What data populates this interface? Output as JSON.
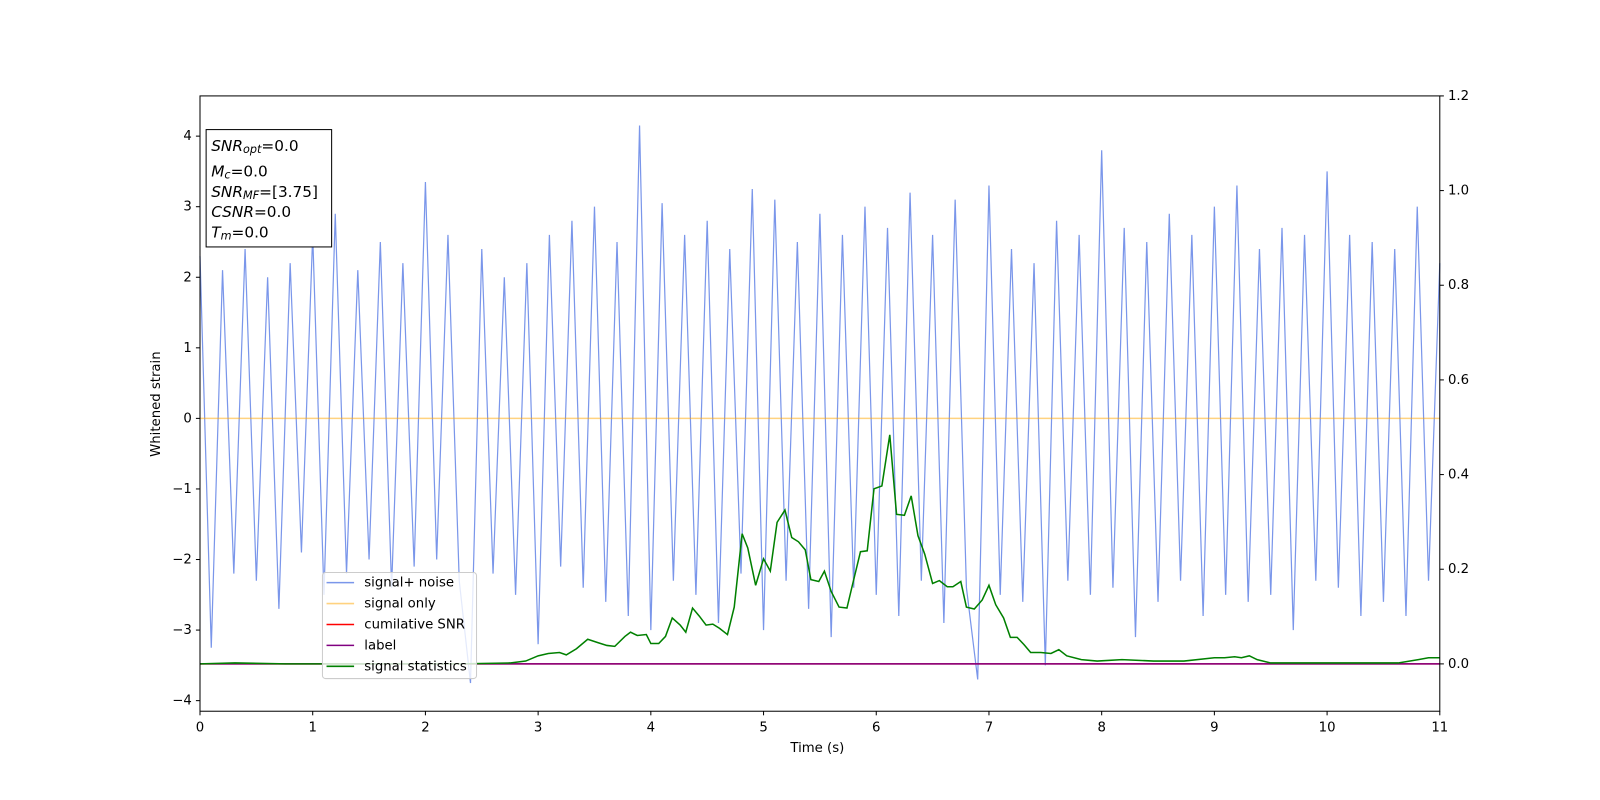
{
  "chart_data": {
    "type": "line",
    "xlabel": "Time (s)",
    "ylabel": "Whitened strain",
    "xlim": [
      0,
      11
    ],
    "ylim": [
      -4.15,
      4.57
    ],
    "y2lim": [
      -0.1,
      1.2
    ],
    "xticks": [
      0,
      1,
      2,
      3,
      4,
      5,
      6,
      7,
      8,
      9,
      10,
      11
    ],
    "yticks": [
      {
        "value": -4,
        "label": "−4"
      },
      {
        "value": -3,
        "label": "−3"
      },
      {
        "value": -2,
        "label": "−2"
      },
      {
        "value": -1,
        "label": "−1"
      },
      0,
      1,
      2,
      3,
      4
    ],
    "y2ticks": [
      {
        "value": 0,
        "label": "0.0"
      },
      0.2,
      0.4,
      0.6,
      0.8,
      {
        "value": 1,
        "label": "1.0"
      },
      1.2
    ],
    "annotations": [
      [
        "SNR",
        "opt",
        "=0.0"
      ],
      [
        "M",
        "c",
        "=0.0"
      ],
      [
        "SNR",
        "MF",
        "=[3.75]"
      ],
      [
        "CSNR",
        "=0.0"
      ],
      [
        "T",
        "m",
        "=0.0"
      ]
    ],
    "series": [
      {
        "name": "signal+ noise",
        "color": "#4169e1",
        "alpha": 0.7,
        "x": [
          0,
          0.1,
          0.2,
          0.3,
          0.4,
          0.5,
          0.6,
          0.7,
          0.8,
          0.9,
          1,
          1.1,
          1.2,
          1.3,
          1.4,
          1.5,
          1.6,
          1.7,
          1.8,
          1.9,
          2,
          2.1,
          2.2,
          2.3,
          2.4,
          2.5,
          2.6,
          2.7,
          2.8,
          2.9,
          3,
          3.1,
          3.2,
          3.3,
          3.4,
          3.5,
          3.6,
          3.7,
          3.8,
          3.9,
          4,
          4.1,
          4.2,
          4.3,
          4.4,
          4.5,
          4.6,
          4.7,
          4.8,
          4.9,
          5,
          5.1,
          5.2,
          5.3,
          5.4,
          5.5,
          5.6,
          5.7,
          5.8,
          5.9,
          6,
          6.1,
          6.2,
          6.3,
          6.4,
          6.5,
          6.6,
          6.7,
          6.8,
          6.9,
          7,
          7.1,
          7.2,
          7.3,
          7.4,
          7.5,
          7.6,
          7.7,
          7.8,
          7.9,
          8,
          8.1,
          8.2,
          8.3,
          8.4,
          8.5,
          8.6,
          8.7,
          8.8,
          8.9,
          9,
          9.1,
          9.2,
          9.3,
          9.4,
          9.5,
          9.6,
          9.7,
          9.8,
          9.9,
          10,
          10.1,
          10.2,
          10.3,
          10.4,
          10.5,
          10.6,
          10.7,
          10.8,
          10.9,
          11
        ],
        "values": [
          2.3,
          -3.25,
          2.1,
          -2.2,
          2.4,
          -2.3,
          2.0,
          -2.7,
          2.2,
          -1.9,
          2.6,
          -2.5,
          2.9,
          -2.2,
          2.1,
          -2.0,
          2.5,
          -2.4,
          2.2,
          -2.1,
          3.35,
          -2.0,
          2.6,
          -2.3,
          -3.75,
          2.4,
          -2.2,
          2.0,
          -2.5,
          2.2,
          -3.2,
          2.6,
          -2.1,
          2.8,
          -2.4,
          3.0,
          -2.6,
          2.5,
          -2.8,
          4.15,
          -3.0,
          3.05,
          -2.3,
          2.6,
          -2.5,
          2.8,
          -2.9,
          2.4,
          -2.2,
          3.25,
          -3.0,
          3.1,
          -2.3,
          2.5,
          -2.7,
          2.9,
          -3.1,
          2.6,
          -2.4,
          3.0,
          -2.5,
          2.7,
          -2.8,
          3.2,
          -2.3,
          2.6,
          -2.9,
          3.1,
          -2.4,
          -3.7,
          3.3,
          -2.5,
          2.4,
          -2.6,
          2.2,
          -3.5,
          2.8,
          -2.3,
          2.6,
          -2.5,
          3.8,
          -2.4,
          2.7,
          -3.1,
          2.5,
          -2.6,
          2.9,
          -2.3,
          2.6,
          -2.8,
          3.0,
          -2.5,
          3.3,
          -2.6,
          2.4,
          -2.5,
          2.7,
          -3.0,
          2.6,
          -2.3,
          3.5,
          -2.4,
          2.6,
          -2.8,
          2.5,
          -2.6,
          2.4,
          -2.8,
          3.0,
          -2.3,
          2.2
        ]
      },
      {
        "name": "signal only",
        "color": "#ffa500",
        "alpha": 0.5,
        "x": [
          0,
          11
        ],
        "values": [
          0,
          0
        ]
      },
      {
        "name": "cumilative SNR",
        "color": "#ff0000",
        "alpha": 1,
        "axis": "y2",
        "x": [
          0,
          11
        ],
        "values": [
          0,
          0
        ]
      },
      {
        "name": "label",
        "color": "#800080",
        "alpha": 1,
        "axis": "y2",
        "x": [
          0,
          11
        ],
        "values": [
          0,
          0
        ]
      },
      {
        "name": "signal statistics",
        "color": "#008000",
        "alpha": 1,
        "axis": "y2",
        "x": [
          0,
          0.31,
          0.76,
          1.39,
          2.3,
          2.75,
          2.89,
          3.0,
          3.09,
          3.19,
          3.25,
          3.34,
          3.44,
          3.53,
          3.61,
          3.68,
          3.77,
          3.82,
          3.88,
          3.96,
          4.0,
          4.07,
          4.13,
          4.19,
          4.26,
          4.31,
          4.37,
          4.43,
          4.49,
          4.55,
          4.61,
          4.68,
          4.74,
          4.81,
          4.86,
          4.93,
          5.0,
          5.06,
          5.12,
          5.19,
          5.25,
          5.31,
          5.37,
          5.42,
          5.49,
          5.54,
          5.6,
          5.67,
          5.74,
          5.79,
          5.86,
          5.92,
          5.98,
          6.05,
          6.12,
          6.18,
          6.25,
          6.31,
          6.37,
          6.43,
          6.5,
          6.56,
          6.63,
          6.68,
          6.75,
          6.8,
          6.87,
          6.94,
          7.0,
          7.06,
          7.13,
          7.19,
          7.25,
          7.31,
          7.37,
          7.46,
          7.55,
          7.62,
          7.69,
          7.82,
          7.96,
          8.18,
          8.46,
          8.73,
          9.0,
          9.09,
          9.18,
          9.24,
          9.31,
          9.38,
          9.5,
          9.81,
          10.27,
          10.63,
          10.81,
          10.9,
          11
        ],
        "values": [
          0,
          0.002,
          0,
          0,
          0,
          0.002,
          0.006,
          0.017,
          0.022,
          0.024,
          0.019,
          0.032,
          0.052,
          0.045,
          0.039,
          0.037,
          0.058,
          0.067,
          0.06,
          0.062,
          0.043,
          0.043,
          0.058,
          0.097,
          0.082,
          0.067,
          0.118,
          0.101,
          0.082,
          0.084,
          0.075,
          0.062,
          0.12,
          0.275,
          0.245,
          0.166,
          0.222,
          0.196,
          0.299,
          0.325,
          0.267,
          0.258,
          0.241,
          0.178,
          0.174,
          0.196,
          0.153,
          0.12,
          0.118,
          0.168,
          0.237,
          0.239,
          0.37,
          0.376,
          0.484,
          0.316,
          0.314,
          0.355,
          0.271,
          0.232,
          0.17,
          0.176,
          0.163,
          0.163,
          0.174,
          0.12,
          0.116,
          0.135,
          0.166,
          0.125,
          0.097,
          0.056,
          0.056,
          0.041,
          0.024,
          0.024,
          0.022,
          0.03,
          0.017,
          0.009,
          0.006,
          0.009,
          0.006,
          0.006,
          0.013,
          0.013,
          0.015,
          0.013,
          0.017,
          0.009,
          0.002,
          0.002,
          0.002,
          0.002,
          0.009,
          0.013,
          0.013
        ]
      }
    ]
  }
}
